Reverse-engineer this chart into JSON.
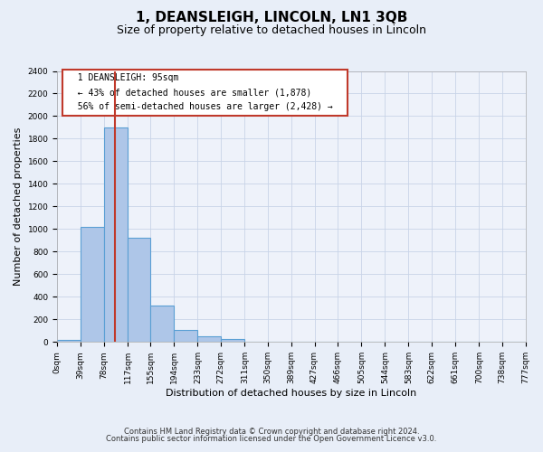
{
  "title": "1, DEANSLEIGH, LINCOLN, LN1 3QB",
  "subtitle": "Size of property relative to detached houses in Lincoln",
  "xlabel": "Distribution of detached houses by size in Lincoln",
  "ylabel": "Number of detached properties",
  "bar_edges": [
    0,
    39,
    78,
    117,
    155,
    194,
    233,
    272,
    311,
    350,
    389,
    427,
    466,
    505,
    544,
    583,
    622,
    661,
    700,
    738,
    777
  ],
  "bar_heights": [
    20,
    1020,
    1900,
    920,
    320,
    105,
    50,
    30,
    0,
    0,
    0,
    0,
    0,
    0,
    0,
    0,
    0,
    0,
    0,
    0
  ],
  "bar_color": "#aec6e8",
  "bar_edge_color": "#5a9fd4",
  "bar_linewidth": 0.8,
  "vline_x": 95,
  "vline_color": "#c0392b",
  "vline_linewidth": 1.5,
  "annotation_title": "1 DEANSLEIGH: 95sqm",
  "annotation_line1": "← 43% of detached houses are smaller (1,878)",
  "annotation_line2": "56% of semi-detached houses are larger (2,428) →",
  "annotation_box_color": "#ffffff",
  "annotation_box_edge": "#c0392b",
  "ylim": [
    0,
    2400
  ],
  "xlim": [
    0,
    777
  ],
  "yticks": [
    0,
    200,
    400,
    600,
    800,
    1000,
    1200,
    1400,
    1600,
    1800,
    2000,
    2200,
    2400
  ],
  "xtick_labels": [
    "0sqm",
    "39sqm",
    "78sqm",
    "117sqm",
    "155sqm",
    "194sqm",
    "233sqm",
    "272sqm",
    "311sqm",
    "350sqm",
    "389sqm",
    "427sqm",
    "466sqm",
    "505sqm",
    "544sqm",
    "583sqm",
    "622sqm",
    "661sqm",
    "700sqm",
    "738sqm",
    "777sqm"
  ],
  "xtick_positions": [
    0,
    39,
    78,
    117,
    155,
    194,
    233,
    272,
    311,
    350,
    389,
    427,
    466,
    505,
    544,
    583,
    622,
    661,
    700,
    738,
    777
  ],
  "grid_color": "#c8d4e8",
  "bg_color": "#e8eef8",
  "plot_bg_color": "#eef2fa",
  "footer_line1": "Contains HM Land Registry data © Crown copyright and database right 2024.",
  "footer_line2": "Contains public sector information licensed under the Open Government Licence v3.0.",
  "title_fontsize": 11,
  "subtitle_fontsize": 9,
  "tick_fontsize": 6.5,
  "ylabel_fontsize": 8,
  "xlabel_fontsize": 8,
  "footer_fontsize": 6
}
